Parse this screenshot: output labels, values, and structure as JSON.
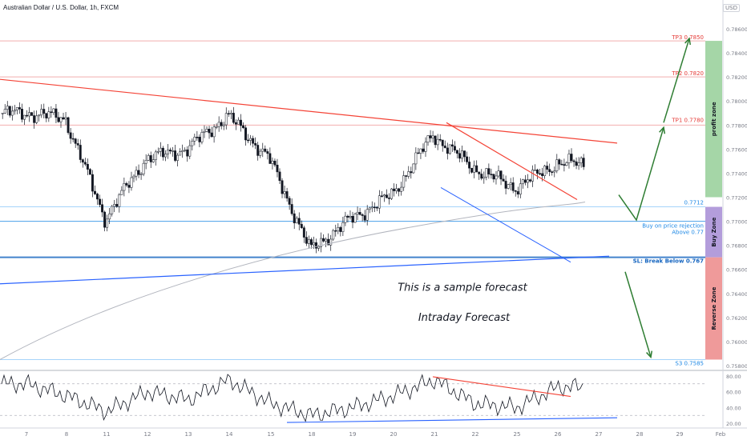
{
  "header": {
    "instrument": "Australian Dollar / U.S. Dollar, 1h, FXCM",
    "currency_selector": "USD"
  },
  "colors": {
    "up_candle": "#131722",
    "down_candle": "#131722",
    "resistance_line": "#f44336",
    "support_line": "#2962ff",
    "forecast_arrow": "#2e7d32",
    "profit_zone": "#a5d6a7",
    "buy_zone": "#b39ddb",
    "reverse_zone": "#ef9a9a"
  },
  "price_axis": {
    "labels": [
      "0.78600",
      "0.78400",
      "0.78200",
      "0.78000",
      "0.77800",
      "0.77600",
      "0.77400",
      "0.77200",
      "0.77000",
      "0.76800",
      "0.76600",
      "0.76400",
      "0.76200",
      "0.76000",
      "0.75800"
    ]
  },
  "time_axis": {
    "labels": [
      "7",
      "8",
      "11",
      "12",
      "13",
      "14",
      "15",
      "18",
      "19",
      "20",
      "21",
      "22",
      "25",
      "26",
      "27",
      "28",
      "29",
      "Feb"
    ]
  },
  "levels": {
    "tp3": "TP3 0.7850",
    "tp2": "TP2 0.7820",
    "tp1": "TP1 0.7780",
    "level_7712": "0.7712",
    "buy_rejection": [
      "Buy on price rejection",
      "Above 0.77"
    ],
    "sl": "SL: Break Below 0.767",
    "s3": "S3 0.7585"
  },
  "zones": {
    "profit": "profit zone",
    "buy": "Buy Zone",
    "reverse": "Reverse Zone"
  },
  "annotations": {
    "sample": "This is a sample forecast",
    "intraday": "Intraday Forecast"
  },
  "rsi": {
    "axis_labels": [
      "80.00",
      "60.00",
      "40.00",
      "20.00"
    ]
  },
  "chart_data": {
    "type": "line",
    "title": "Australian Dollar / U.S. Dollar, 1h, FXCM",
    "x_axis_dates": [
      "7",
      "8",
      "11",
      "12",
      "13",
      "14",
      "15",
      "18",
      "19",
      "20",
      "21",
      "22",
      "25",
      "26",
      "27",
      "28",
      "29",
      "Feb"
    ],
    "ylim": [
      0.7578,
      0.7872
    ],
    "series": [
      {
        "name": "",
        "x": [
          "7",
          "8",
          "11",
          "12",
          "13",
          "14",
          "15",
          "18",
          "19",
          "20",
          "21",
          "22",
          "25",
          "26"
        ],
        "values": [
          0.779,
          0.7786,
          0.7702,
          0.7752,
          0.776,
          0.7788,
          0.7752,
          0.7676,
          0.7702,
          0.7722,
          0.7772,
          0.7744,
          0.7728,
          0.7748
        ]
      }
    ],
    "rsi": {
      "ylim": [
        15,
        85
      ],
      "values": [
        70,
        55,
        35,
        60,
        50,
        75,
        45,
        30,
        40,
        55,
        75,
        45,
        40,
        66
      ]
    }
  }
}
